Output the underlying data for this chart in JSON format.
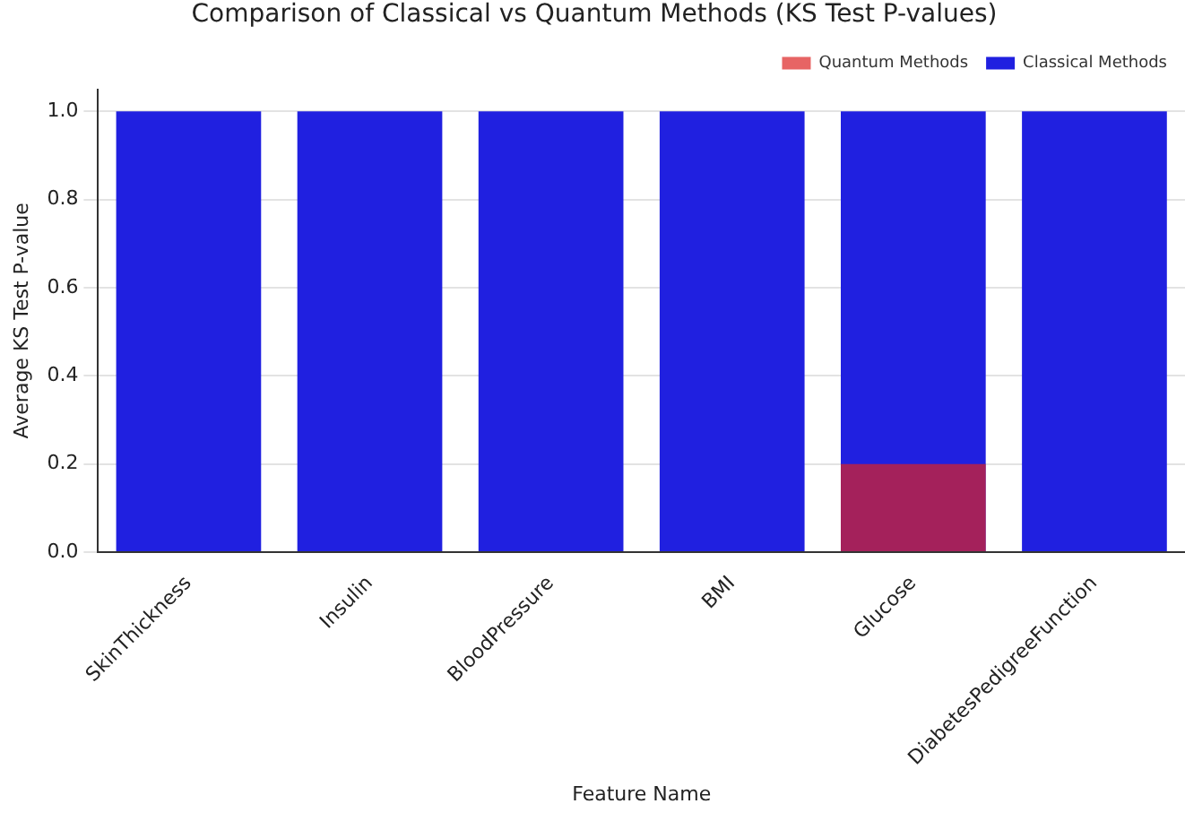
{
  "chart_data": {
    "type": "bar",
    "title": "Comparison of Classical vs Quantum Methods (KS Test P-values)",
    "xlabel": "Feature Name",
    "ylabel": "Average KS Test P-value",
    "categories": [
      "SkinThickness",
      "Insulin",
      "BloodPressure",
      "BMI",
      "Glucose",
      "DiabetesPedigreeFunction"
    ],
    "series": [
      {
        "name": "Classical Methods",
        "color": "#2020e0",
        "values": [
          1.0,
          1.0,
          1.0,
          1.0,
          1.0,
          1.0
        ]
      },
      {
        "name": "Quantum Methods",
        "color": "#dd2222",
        "values": [
          0,
          0,
          0,
          0,
          0.2,
          0
        ]
      }
    ],
    "ylim": [
      0,
      1.05
    ],
    "yticks": [
      {
        "value": 0,
        "label": "0.0"
      },
      {
        "value": 0.2,
        "label": "0.2"
      },
      {
        "value": 0.4,
        "label": "0.4"
      },
      {
        "value": 0.6,
        "label": "0.6"
      },
      {
        "value": 0.8,
        "label": "0.8"
      },
      {
        "value": 1,
        "label": "1.0"
      }
    ],
    "grid": "y",
    "legend": "top right"
  }
}
